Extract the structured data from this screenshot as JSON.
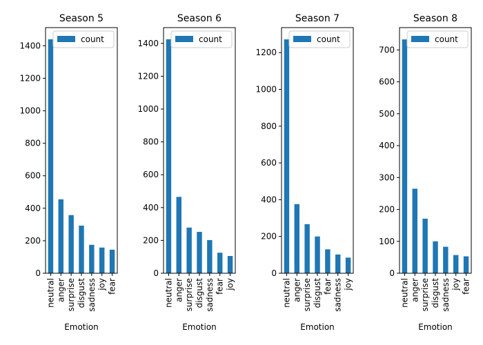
{
  "chart_data": [
    {
      "type": "bar",
      "title": "Season 5",
      "xlabel": "Emotion",
      "ylabel": "",
      "categories": [
        "neutral",
        "anger",
        "surprise",
        "disgust",
        "sadness",
        "joy",
        "fear"
      ],
      "series": [
        {
          "name": "count",
          "values": [
            1440,
            455,
            358,
            293,
            175,
            158,
            145
          ]
        }
      ],
      "ylim": [
        0,
        1512
      ],
      "yticks": [
        0,
        200,
        400,
        600,
        800,
        1000,
        1200,
        1400
      ],
      "legend": "top-right",
      "grid": false
    },
    {
      "type": "bar",
      "title": "Season 6",
      "xlabel": "Emotion",
      "ylabel": "",
      "categories": [
        "neutral",
        "anger",
        "surprise",
        "disgust",
        "sadness",
        "fear",
        "joy"
      ],
      "series": [
        {
          "name": "count",
          "values": [
            1425,
            465,
            278,
            252,
            202,
            125,
            105
          ]
        }
      ],
      "ylim": [
        0,
        1496
      ],
      "yticks": [
        0,
        200,
        400,
        600,
        800,
        1000,
        1200,
        1400
      ],
      "legend": "top-right",
      "grid": false
    },
    {
      "type": "bar",
      "title": "Season 7",
      "xlabel": "Emotion",
      "ylabel": "",
      "categories": [
        "neutral",
        "anger",
        "surprise",
        "disgust",
        "fear",
        "sadness",
        "joy"
      ],
      "series": [
        {
          "name": "count",
          "values": [
            1272,
            376,
            267,
            200,
            130,
            102,
            85
          ]
        }
      ],
      "ylim": [
        0,
        1336
      ],
      "yticks": [
        0,
        200,
        400,
        600,
        800,
        1000,
        1200
      ],
      "legend": "top-right",
      "grid": false
    },
    {
      "type": "bar",
      "title": "Season 8",
      "xlabel": "Emotion",
      "ylabel": "",
      "categories": [
        "neutral",
        "anger",
        "surprise",
        "disgust",
        "sadness",
        "joy",
        "fear"
      ],
      "series": [
        {
          "name": "count",
          "values": [
            733,
            265,
            171,
            100,
            83,
            57,
            53
          ]
        }
      ],
      "ylim": [
        0,
        770
      ],
      "yticks": [
        0,
        100,
        200,
        300,
        400,
        500,
        600,
        700
      ],
      "legend": "top-right",
      "grid": false
    }
  ],
  "colors": {
    "bar": "#1f77b4",
    "axis": "#000000",
    "legend_border": "#cccccc"
  }
}
